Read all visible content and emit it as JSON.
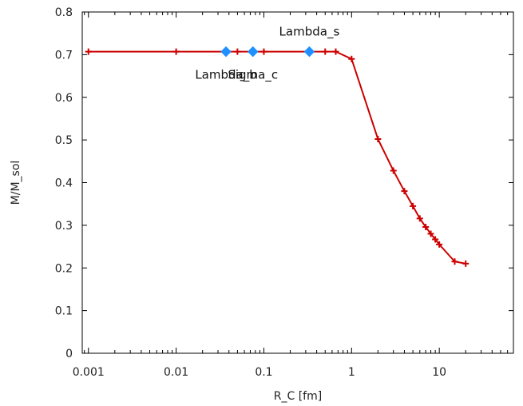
{
  "chart_data": {
    "type": "line",
    "xlabel": "R_C [fm]",
    "ylabel": "M/M_sol",
    "x_scale": "log",
    "xlim": [
      0.00085,
      70
    ],
    "ylim": [
      0,
      0.8
    ],
    "x_ticks": [
      0.001,
      0.01,
      0.1,
      1,
      10
    ],
    "x_tick_labels": [
      "0.001",
      "0.01",
      "0.1",
      "1",
      "10"
    ],
    "y_ticks": [
      0,
      0.1,
      0.2,
      0.3,
      0.4,
      0.5,
      0.6,
      0.7,
      0.8
    ],
    "y_tick_labels": [
      "0",
      "0.1",
      "0.2",
      "0.3",
      "0.4",
      "0.5",
      "0.6",
      "0.7",
      "0.8"
    ],
    "grid": false,
    "series": [
      {
        "color": "#cc0000",
        "marker": "plus",
        "x": [
          0.001,
          0.01,
          0.05,
          0.1,
          0.5,
          0.66,
          1,
          2,
          3,
          4,
          5,
          6,
          7,
          8,
          9,
          10,
          15,
          20
        ],
        "y": [
          0.707,
          0.707,
          0.707,
          0.707,
          0.707,
          0.707,
          0.69,
          0.502,
          0.428,
          0.38,
          0.345,
          0.316,
          0.296,
          0.28,
          0.267,
          0.255,
          0.215,
          0.21
        ]
      }
    ],
    "highlights": [
      {
        "label": "Lambda_b",
        "x": 0.037,
        "y": 0.707,
        "color": "#1e90ff",
        "label_pos": "below"
      },
      {
        "label": "Sigma_c",
        "x": 0.075,
        "y": 0.707,
        "color": "#1e90ff",
        "label_pos": "below"
      },
      {
        "label": "Lambda_s",
        "x": 0.33,
        "y": 0.707,
        "color": "#1e90ff",
        "label_pos": "above"
      }
    ]
  }
}
